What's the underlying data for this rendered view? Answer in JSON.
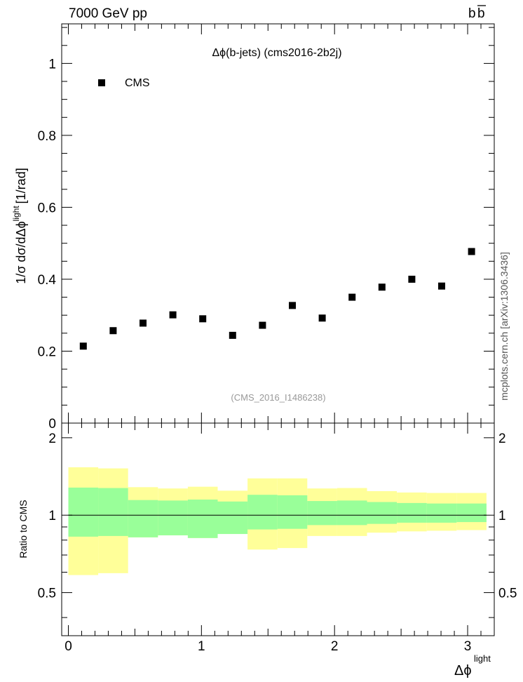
{
  "header": {
    "left": "7000 GeV pp",
    "right_main": "b",
    "right_bar": "b"
  },
  "side_label": "mcplots.cern.ch [arXiv:1306.3436]",
  "chart_data": [
    {
      "type": "scatter",
      "title": "Δϕ(b-jets) (cms2016-2b2j)",
      "watermark": "(CMS_2016_I1486238)",
      "ylabel_main": "1/σ dσ/dΔϕ",
      "ylabel_sup": "light",
      "ylabel_unit": "[1/rad]",
      "xlim": [
        -0.05,
        3.2
      ],
      "ylim": [
        0,
        1.11
      ],
      "yticks": [
        0,
        0.2,
        0.4,
        0.6,
        0.8,
        1
      ],
      "ytick_labels": [
        "0",
        "0.2",
        "0.4",
        "0.6",
        "0.8",
        "1"
      ],
      "legend_position": "top-left",
      "series": [
        {
          "name": "CMS",
          "color": "#000000",
          "x": [
            0.1122,
            0.3366,
            0.561,
            0.7854,
            1.0098,
            1.2342,
            1.4586,
            1.683,
            1.9074,
            2.1318,
            2.3562,
            2.5806,
            2.805,
            3.0294
          ],
          "y": [
            0.214,
            0.257,
            0.278,
            0.301,
            0.29,
            0.244,
            0.272,
            0.327,
            0.292,
            0.35,
            0.378,
            0.4,
            0.381,
            0.477
          ]
        }
      ]
    },
    {
      "type": "area",
      "ylabel": "Ratio to CMS",
      "xlabel_main": "Δϕ",
      "xlabel_sup": "light",
      "xlim": [
        -0.05,
        3.2
      ],
      "ylim": [
        0.34,
        2.28
      ],
      "xticks": [
        0,
        1,
        2,
        3
      ],
      "xtick_labels": [
        "0",
        "1",
        "2",
        "3"
      ],
      "yticks": [
        0.5,
        1,
        2
      ],
      "ytick_labels": [
        "0.5",
        "1",
        "2"
      ],
      "reference_line": 1,
      "colors": {
        "inner": "#99ff99",
        "outer": "#ffff99"
      },
      "bins": [
        {
          "lo": 0.0,
          "hi": 0.2244,
          "in_lo": 0.825,
          "in_hi": 1.28,
          "out_lo": 0.585,
          "out_hi": 1.535
        },
        {
          "lo": 0.2244,
          "hi": 0.4488,
          "in_lo": 0.83,
          "in_hi": 1.275,
          "out_lo": 0.595,
          "out_hi": 1.52
        },
        {
          "lo": 0.4488,
          "hi": 0.6732,
          "in_lo": 0.82,
          "in_hi": 1.145,
          "out_lo": 0.82,
          "out_hi": 1.285
        },
        {
          "lo": 0.6732,
          "hi": 0.8976,
          "in_lo": 0.835,
          "in_hi": 1.14,
          "out_lo": 0.835,
          "out_hi": 1.27
        },
        {
          "lo": 0.8976,
          "hi": 1.122,
          "in_lo": 0.815,
          "in_hi": 1.15,
          "out_lo": 0.815,
          "out_hi": 1.29
        },
        {
          "lo": 1.122,
          "hi": 1.3464,
          "in_lo": 0.845,
          "in_hi": 1.13,
          "out_lo": 0.845,
          "out_hi": 1.245
        },
        {
          "lo": 1.3464,
          "hi": 1.5708,
          "in_lo": 0.88,
          "in_hi": 1.2,
          "out_lo": 0.735,
          "out_hi": 1.39
        },
        {
          "lo": 1.5708,
          "hi": 1.7952,
          "in_lo": 0.885,
          "in_hi": 1.195,
          "out_lo": 0.745,
          "out_hi": 1.39
        },
        {
          "lo": 1.7952,
          "hi": 2.0196,
          "in_lo": 0.915,
          "in_hi": 1.135,
          "out_lo": 0.83,
          "out_hi": 1.27
        },
        {
          "lo": 2.0196,
          "hi": 2.244,
          "in_lo": 0.915,
          "in_hi": 1.14,
          "out_lo": 0.83,
          "out_hi": 1.275
        },
        {
          "lo": 2.244,
          "hi": 2.4684,
          "in_lo": 0.925,
          "in_hi": 1.125,
          "out_lo": 0.855,
          "out_hi": 1.24
        },
        {
          "lo": 2.4684,
          "hi": 2.6928,
          "in_lo": 0.935,
          "in_hi": 1.115,
          "out_lo": 0.865,
          "out_hi": 1.225
        },
        {
          "lo": 2.6928,
          "hi": 2.9172,
          "in_lo": 0.935,
          "in_hi": 1.11,
          "out_lo": 0.87,
          "out_hi": 1.22
        },
        {
          "lo": 2.9172,
          "hi": 3.1416,
          "in_lo": 0.94,
          "in_hi": 1.11,
          "out_lo": 0.875,
          "out_hi": 1.22
        }
      ]
    }
  ]
}
